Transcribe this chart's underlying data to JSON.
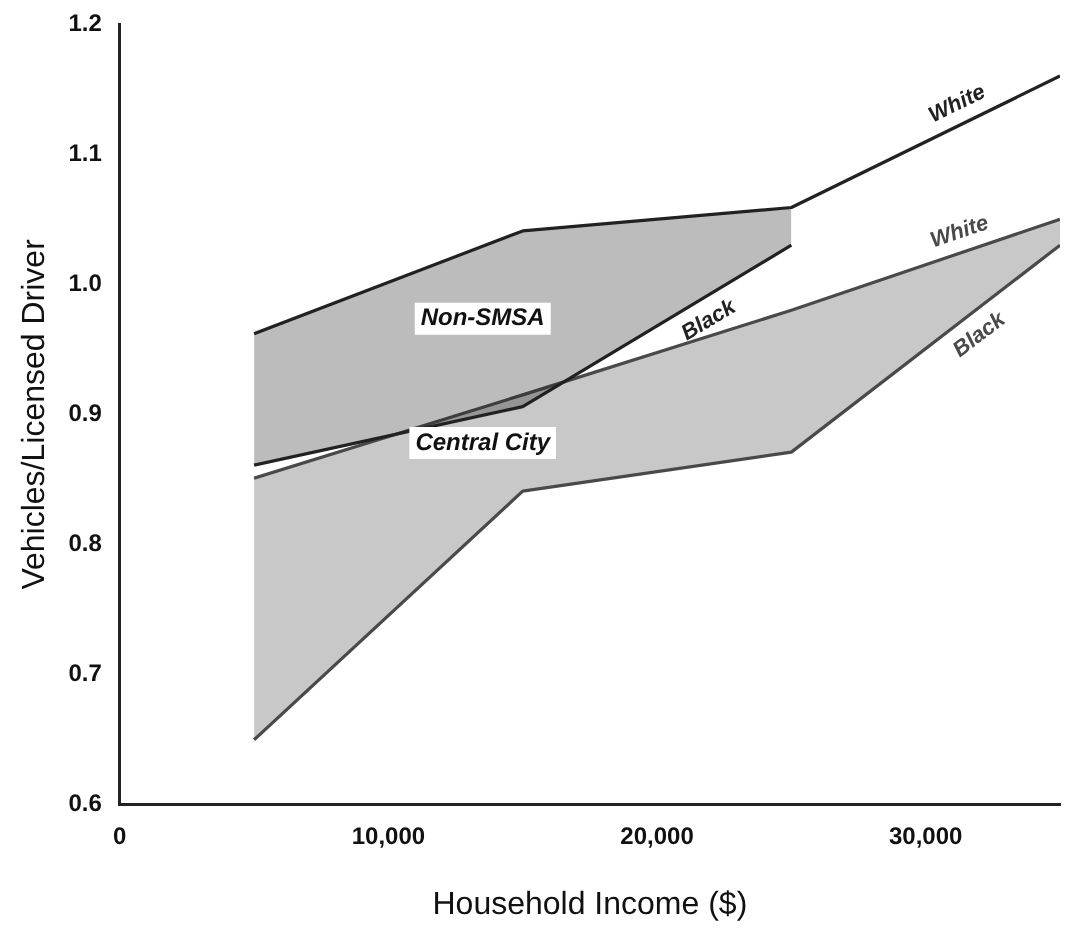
{
  "chart_data": {
    "type": "line",
    "xlabel": "Household Income ($)",
    "ylabel": "Vehicles/Licensed Driver",
    "series": [
      {
        "name": "White",
        "color": "#222222",
        "x": [
          5000,
          15000,
          25000,
          35000
        ],
        "values": [
          0.962,
          1.041,
          1.059,
          1.16
        ],
        "upper": [
          0.962,
          1.041,
          1.059,
          null
        ],
        "lower": [
          0.861,
          0.906,
          1.03,
          null
        ]
      },
      {
        "name": "Black",
        "color": "#222222",
        "x": [
          5000,
          15000,
          25000
        ],
        "values": [
          0.861,
          0.906,
          1.03
        ]
      },
      {
        "name": "White",
        "color": "#4a4a4a",
        "x": [
          5000,
          15000,
          25000,
          35000
        ],
        "values": [
          0.851,
          0.915,
          0.98,
          1.05
        ],
        "upper": [
          0.851,
          0.915,
          0.98,
          1.05
        ],
        "lower": [
          0.65,
          0.841,
          0.871,
          1.03
        ]
      },
      {
        "name": "Black",
        "color": "#4a4a4a",
        "x": [
          5000,
          15000,
          25000,
          35000
        ],
        "values": [
          0.65,
          0.841,
          0.871,
          1.03
        ]
      }
    ],
    "annotations": [
      "Non-SMSA",
      "Central City"
    ],
    "xlim": [
      0,
      35000
    ],
    "xticks": [
      0,
      {
        "value": 10000,
        "label": "10,000"
      },
      {
        "value": 20000,
        "label": "20,000"
      },
      {
        "value": 30000,
        "label": "30,000"
      }
    ],
    "ylim": [
      0.6,
      1.2
    ],
    "yticks": [
      0.6,
      0.7,
      0.8,
      0.9,
      {
        "value": 1,
        "label": "1.0"
      },
      1.1,
      1.2
    ],
    "grid": false,
    "legend": false,
    "marker": "none",
    "line_style": "solid"
  }
}
